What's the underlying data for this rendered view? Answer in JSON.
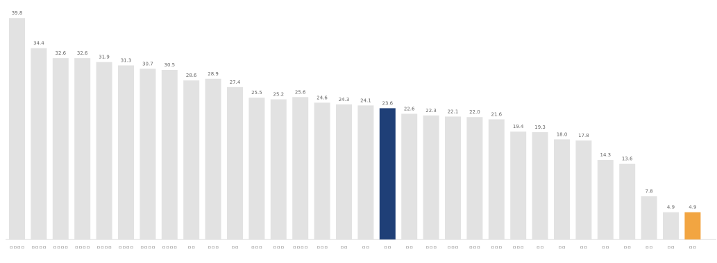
{
  "chart_data": {
    "type": "bar",
    "title": "",
    "xlabel": "",
    "ylabel": "",
    "ylim": [
      0,
      40.2
    ],
    "grid": false,
    "categories": [
      "ㅁㅁㅁㅁ",
      "ㅁㅁㅁㅁ",
      "ㅁㅁㅁㅁ",
      "ㅁㅁㅁㅁ",
      "ㅁㅁㅁㅁ",
      "ㅁㅁㅁㅁ",
      "ㅁㅁㅁㅁ",
      "ㅁㅁㅁㅁ",
      "ㅁㅁ",
      "ㅁㅁㅁ",
      "ㅁㅁ",
      "ㅁㅁㅁ",
      "ㅁㅁㅁ",
      "ㅁㅁㅁㅁ",
      "ㅁㅁㅁ",
      "ㅁㅁ",
      "ㅁㅁ",
      "ㅁㅁ",
      "ㅁㅁ",
      "ㅁㅁㅁ",
      "ㅁㅁㅁ",
      "ㅁㅁㅁ",
      "ㅁㅁㅁ",
      "ㅁㅁㅁ",
      "ㅁㅁ",
      "ㅁㅁ",
      "ㅁㅁ",
      "ㅁㅁ",
      "ㅁㅁ",
      "ㅁㅁ",
      "ㅁㅁ",
      "ㅁㅁ"
    ],
    "values": [
      39.8,
      34.4,
      32.6,
      32.6,
      31.9,
      31.3,
      30.7,
      30.5,
      28.6,
      28.9,
      27.4,
      25.5,
      25.2,
      25.6,
      24.6,
      24.3,
      24.1,
      23.6,
      22.6,
      22.3,
      22.1,
      22.0,
      21.6,
      19.4,
      19.3,
      18.0,
      17.8,
      14.3,
      13.6,
      7.8,
      4.9,
      4.9
    ],
    "labels": [
      "39.8",
      "34.4",
      "32.6",
      "32.6",
      "31.9",
      "31.3",
      "30.7",
      "30.5",
      "28.6",
      "28.9",
      "27.4",
      "25.5",
      "25.2",
      "25.6",
      "24.6",
      "24.3",
      "24.1",
      "23.6",
      "22.6",
      "22.3",
      "22.1",
      "22.0",
      "21.6",
      "19.4",
      "19.3",
      "18.0",
      "17.8",
      "14.3",
      "13.6",
      "7.8",
      "4.9",
      "4.9"
    ],
    "highlight_index": 17,
    "highlight_color": "#1f3f77",
    "accent_index": 31,
    "accent_color": "#f2a541",
    "default_color": "#e2e2e2"
  }
}
